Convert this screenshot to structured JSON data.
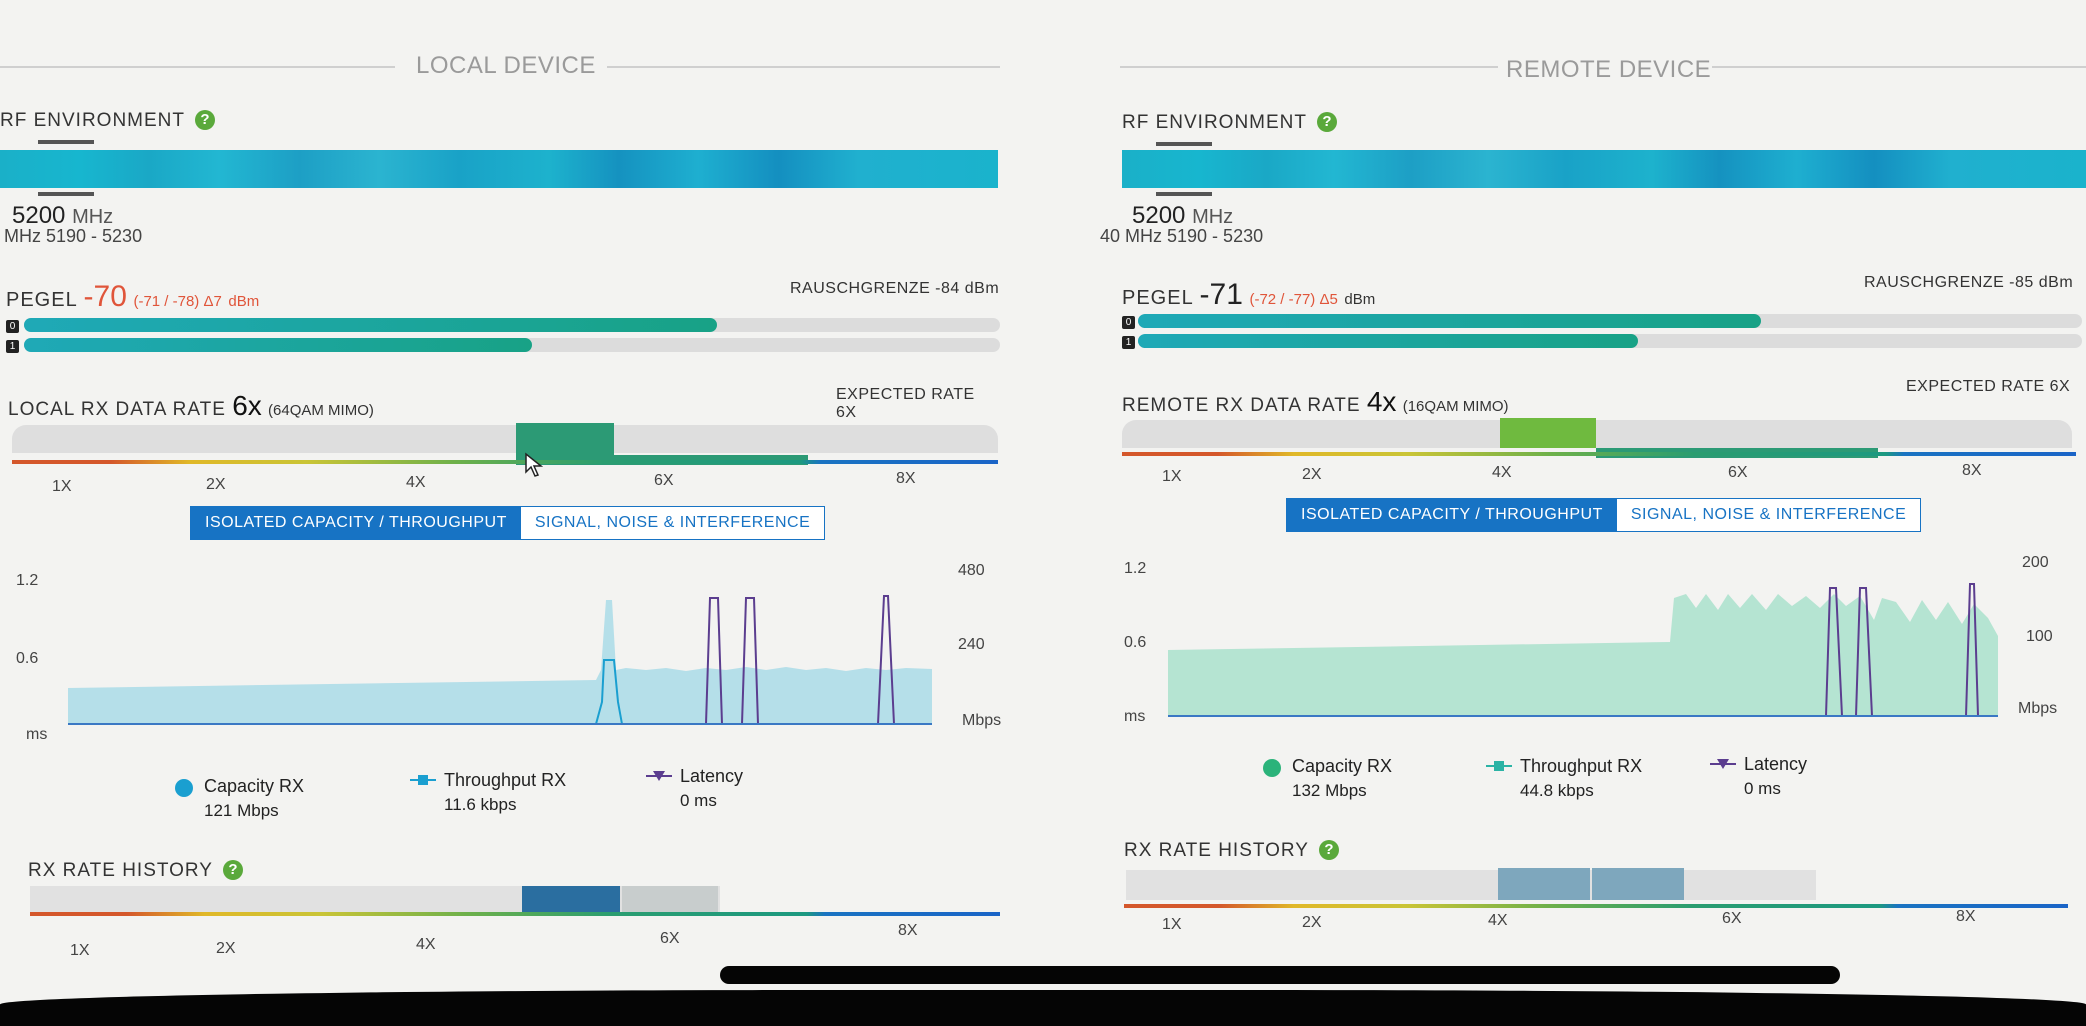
{
  "local": {
    "section_title": "LOCAL DEVICE",
    "rf_label": "RF ENVIRONMENT",
    "freq": "5200",
    "freq_unit": "MHz",
    "freq_range": "MHz 5190 - 5230",
    "pegel_label": "PEGEL",
    "pegel_value": "-70",
    "pegel_detail": "(-71 / -78) Δ7",
    "pegel_unit": "dBm",
    "noise_floor": "RAUSCHGRENZE -84 dBm",
    "chain0_pct": 0.71,
    "chain1_pct": 0.52,
    "chains": [
      "0",
      "1"
    ],
    "rx_label": "LOCAL RX DATA RATE",
    "rx_rate": "6x",
    "rx_mod": "(64QAM MIMO)",
    "expected_rate": "EXPECTED RATE 6X",
    "ticks": [
      "1X",
      "2X",
      "4X",
      "6X",
      "8X"
    ],
    "tab_active": "ISOLATED CAPACITY / THROUGHPUT",
    "tab_inactive": "SIGNAL, NOISE & INTERFERENCE",
    "y_left": [
      "1.2",
      "0.6",
      "ms"
    ],
    "y_right": [
      "480",
      "240",
      "Mbps"
    ],
    "legend": {
      "capacity_label": "Capacity RX",
      "capacity_value": "121 Mbps",
      "throughput_label": "Throughput RX",
      "throughput_value": "11.6 kbps",
      "latency_label": "Latency",
      "latency_value": "0 ms"
    },
    "history_label": "RX RATE HISTORY"
  },
  "remote": {
    "section_title": "REMOTE DEVICE",
    "rf_label": "RF ENVIRONMENT",
    "freq": "5200",
    "freq_unit": "MHz",
    "freq_range": "40 MHz 5190 - 5230",
    "pegel_label": "PEGEL",
    "pegel_value": "-71",
    "pegel_detail": "(-72 / -77) Δ5",
    "pegel_unit": "dBm",
    "noise_floor": "RAUSCHGRENZE -85 dBm",
    "chain0_pct": 0.66,
    "chain1_pct": 0.53,
    "chains": [
      "0",
      "1"
    ],
    "rx_label": "REMOTE RX DATA RATE",
    "rx_rate": "4x",
    "rx_mod": "(16QAM MIMO)",
    "expected_rate": "EXPECTED RATE 6X",
    "ticks": [
      "1X",
      "2X",
      "4X",
      "6X",
      "8X"
    ],
    "tab_active": "ISOLATED CAPACITY / THROUGHPUT",
    "tab_inactive": "SIGNAL, NOISE & INTERFERENCE",
    "y_left": [
      "1.2",
      "0.6",
      "ms"
    ],
    "y_right": [
      "200",
      "100",
      "Mbps"
    ],
    "legend": {
      "capacity_label": "Capacity RX",
      "capacity_value": "132 Mbps",
      "throughput_label": "Throughput RX",
      "throughput_value": "44.8 kbps",
      "latency_label": "Latency",
      "latency_value": "0 ms"
    },
    "history_label": "RX RATE HISTORY"
  },
  "colors": {
    "accent": "#1773c4",
    "capacity": "#1a9fd0",
    "throughput": "#2bb3a5",
    "latency": "#5b3d8f",
    "pegel_red": "#e0553a"
  }
}
